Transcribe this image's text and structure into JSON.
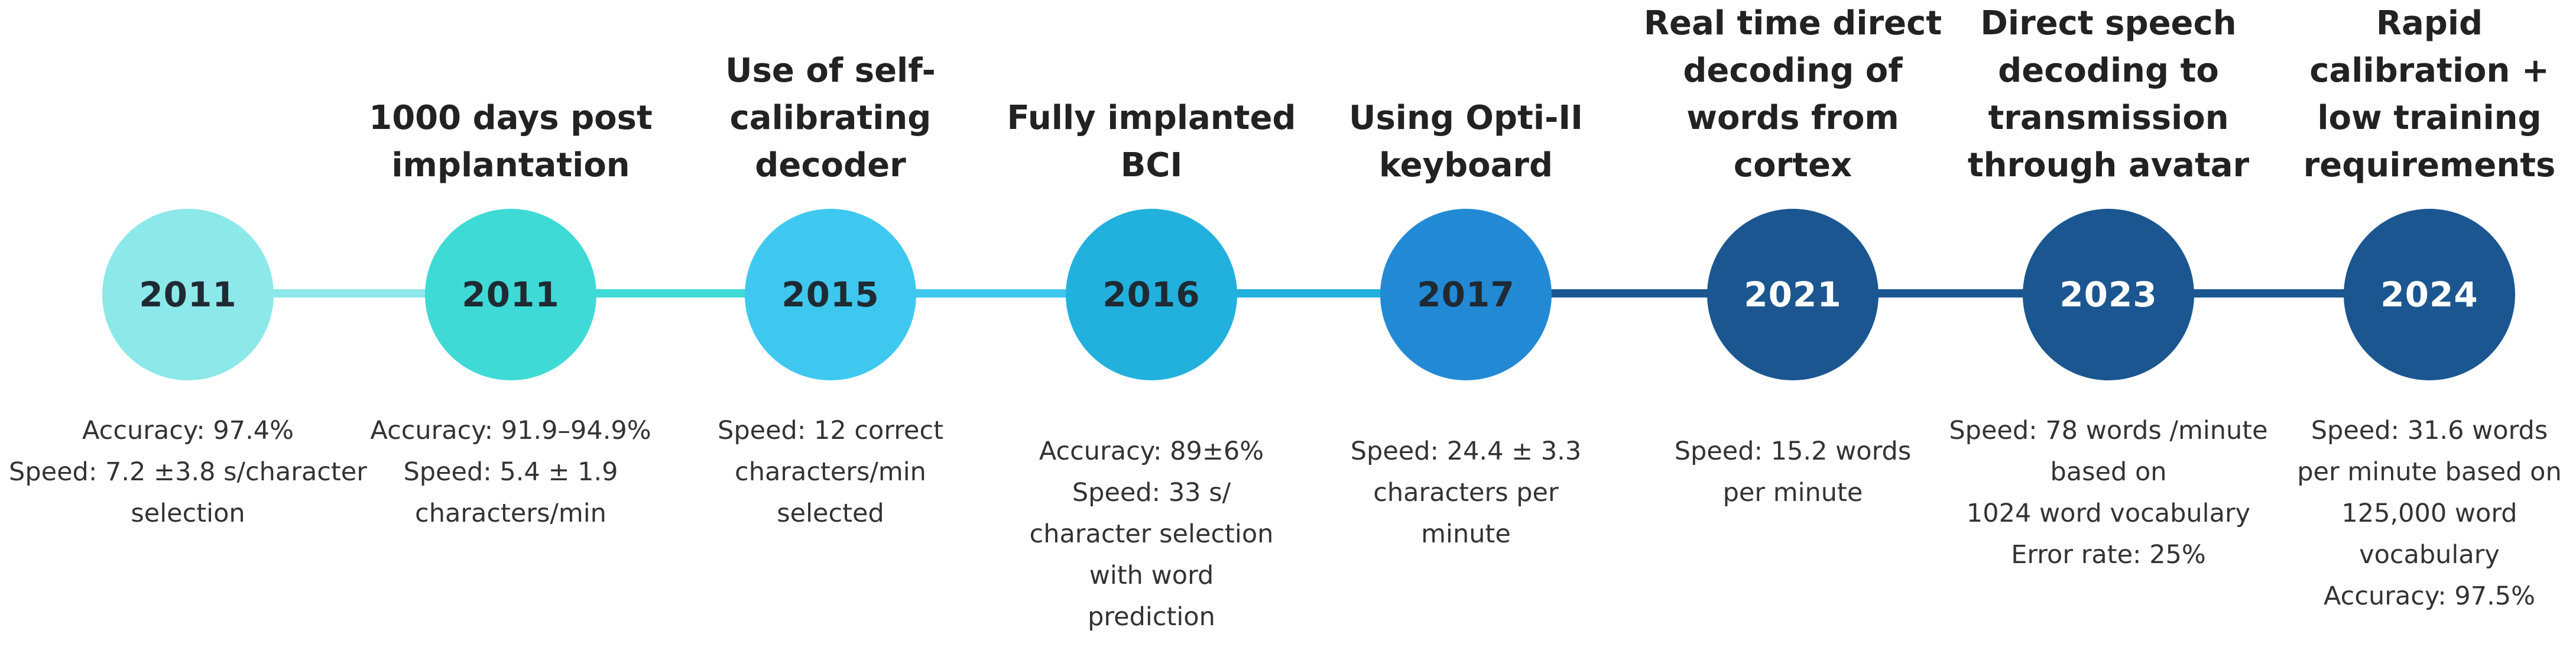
{
  "milestones": [
    {
      "year": "2011",
      "title": [],
      "details": [
        "Accuracy: 97.4%",
        "Speed: 7.2 ±3.8 s/character",
        "selection"
      ],
      "color": "#8de8ea",
      "text_color": "#1f2a33"
    },
    {
      "year": "2011",
      "title": [
        "1000 days post",
        "implantation"
      ],
      "details": [
        "Accuracy: 91.9–94.9%",
        "Speed: 5.4 ± 1.9",
        "characters/min"
      ],
      "color": "#3fdad6",
      "text_color": "#1f2a33"
    },
    {
      "year": "2015",
      "title": [
        "Use of self-",
        "calibrating",
        "decoder"
      ],
      "details": [
        "Speed: 12 correct",
        "characters/min",
        "selected"
      ],
      "color": "#3ec8ef",
      "text_color": "#1f2a33"
    },
    {
      "year": "2016",
      "title": [
        "Fully implanted",
        "BCI"
      ],
      "details": [
        "Accuracy: 89±6%",
        "Speed: 33 s/",
        "character selection",
        "with word",
        "prediction"
      ],
      "color": "#22b1dd",
      "text_color": "#1f2a33"
    },
    {
      "year": "2017",
      "title": [
        "Using Opti-II",
        "keyboard"
      ],
      "details": [
        "Speed: 24.4 ± 3.3",
        "characters per",
        "minute"
      ],
      "color": "#228ad5",
      "text_color": "#1f2a33"
    },
    {
      "year": "2021",
      "title": [
        "Real time direct",
        "decoding of",
        "words from",
        "cortex"
      ],
      "details": [
        "Speed: 15.2 words",
        "per minute"
      ],
      "color": "#1b5690",
      "text_color": "#ffffff"
    },
    {
      "year": "2023",
      "title": [
        "Direct speech",
        "decoding to",
        "transmission",
        "through avatar"
      ],
      "details": [
        "Speed: 78 words /minute",
        "based on",
        "1024 word vocabulary",
        "Error rate: 25%"
      ],
      "color": "#1b5690",
      "text_color": "#ffffff"
    },
    {
      "year": "2024",
      "title": [
        "Rapid",
        "calibration +",
        "low training",
        "requirements"
      ],
      "details": [
        "Speed: 31.6 words",
        "per minute based on",
        "125,000 word",
        "vocabulary",
        "Accuracy: 97.5%"
      ],
      "color": "#1b5690",
      "text_color": "#ffffff"
    }
  ],
  "connector_colors": [
    "#8de8ea",
    "#3fdad6",
    "#3ec8ef",
    "#22b1dd",
    "#1b5690",
    "#1b5690",
    "#1b5690"
  ]
}
